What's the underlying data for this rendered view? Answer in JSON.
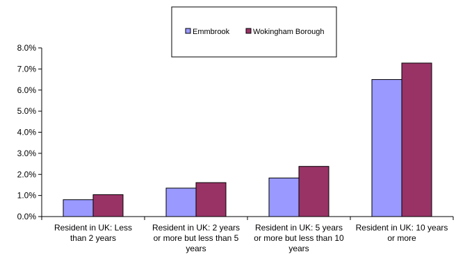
{
  "chart_data": {
    "type": "bar",
    "categories": [
      [
        "Resident in UK: Less",
        "than 2 years"
      ],
      [
        "Resident in UK: 2 years",
        "or more but less than 5",
        "years"
      ],
      [
        "Resident in UK: 5 years",
        "or more but less than 10",
        "years"
      ],
      [
        "Resident in UK: 10 years",
        "or more"
      ]
    ],
    "series": [
      {
        "name": "Emmbrook",
        "values": [
          0.8,
          1.35,
          1.83,
          6.5
        ],
        "color": "#9999ff"
      },
      {
        "name": "Wokingham Borough",
        "values": [
          1.04,
          1.61,
          2.38,
          7.28
        ],
        "color": "#993366"
      }
    ],
    "ylim": [
      0,
      8
    ],
    "yticks": [
      0,
      1,
      2,
      3,
      4,
      5,
      6,
      7,
      8
    ],
    "ytick_labels": [
      "0.0%",
      "1.0%",
      "2.0%",
      "3.0%",
      "4.0%",
      "5.0%",
      "6.0%",
      "7.0%",
      "8.0%"
    ],
    "grid": false,
    "legend_position": "top"
  }
}
